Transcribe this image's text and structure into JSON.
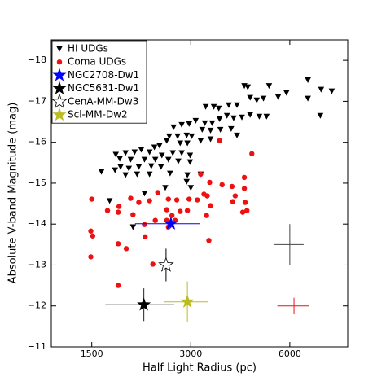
{
  "chart_data": {
    "type": "scatter",
    "x_label": "Half Light Radius (pc)",
    "y_label": "Absolute V-band Magnitude (mag)",
    "xscale": "log",
    "xlim": [
      1130,
      9000
    ],
    "ylim": [
      -11,
      -18.5
    ],
    "xticks": [
      1500,
      3000,
      6000
    ],
    "yticks": [
      {
        "value": -18,
        "label": "−18"
      },
      {
        "value": -17,
        "label": "−17"
      },
      {
        "value": -16,
        "label": "−16"
      },
      {
        "value": -15,
        "label": "−15"
      },
      {
        "value": -14,
        "label": "−14"
      },
      {
        "value": -13,
        "label": "−13"
      },
      {
        "value": -12,
        "label": "−12"
      },
      {
        "value": -11,
        "label": "−11"
      }
    ],
    "legend": "upper left",
    "series": [
      {
        "name": "HI UDGs",
        "color": "#000000",
        "marker": "triangle-down",
        "x": [
          6810,
          8050,
          7470,
          5190,
          4365,
          4470,
          4990,
          5860,
          5530,
          4761,
          4545,
          4145,
          3915,
          3650,
          3525,
          3330,
          3865,
          4545,
          4845,
          5100,
          4290,
          4050,
          3670,
          3485,
          3310,
          3105,
          2965,
          2815,
          2660,
          2580,
          2735,
          2915,
          3020,
          3250,
          3445,
          3690,
          3980,
          4145,
          3445,
          3215,
          2930,
          2785,
          2535,
          2410,
          2325,
          2248,
          2121,
          2025,
          1900,
          1775,
          1825,
          1970,
          2170,
          2340,
          2565,
          2450,
          2645,
          2815,
          2985,
          2985,
          2750,
          2435,
          2275,
          2085,
          1945,
          1835,
          1765,
          1605,
          1900,
          2060,
          2248,
          2595,
          2930,
          3215,
          3000,
          2915,
          2510,
          2170,
          1700,
          2002,
          7430,
          6810
        ],
        "values": [
          -17.52,
          -17.25,
          -17.29,
          -17.38,
          -17.38,
          -17.35,
          -17.07,
          -17.21,
          -17.11,
          -17.03,
          -17.09,
          -16.91,
          -16.91,
          -16.83,
          -16.87,
          -16.87,
          -16.65,
          -16.67,
          -16.63,
          -16.63,
          -16.61,
          -16.59,
          -16.57,
          -16.47,
          -16.47,
          -16.53,
          -16.45,
          -16.43,
          -16.37,
          -16.15,
          -16.15,
          -16.17,
          -16.15,
          -16.31,
          -16.29,
          -16.31,
          -16.33,
          -16.17,
          -16.08,
          -16.04,
          -15.98,
          -15.98,
          -16.04,
          -15.92,
          -15.88,
          -15.76,
          -15.82,
          -15.76,
          -15.74,
          -15.7,
          -15.6,
          -15.58,
          -15.58,
          -15.58,
          -15.58,
          -15.68,
          -15.74,
          -15.74,
          -15.68,
          -15.52,
          -15.54,
          -15.4,
          -15.42,
          -15.4,
          -15.36,
          -15.4,
          -15.32,
          -15.28,
          -15.2,
          -15.22,
          -15.22,
          -15.24,
          -15.2,
          -15.22,
          -14.89,
          -15.04,
          -14.89,
          -14.75,
          -14.57,
          -13.93,
          -16.65,
          -17.07
        ]
      },
      {
        "name": "Coma UDGs",
        "color": "#ee1111",
        "marker": "circle",
        "x": [
          3670,
          4600,
          3215,
          3425,
          4365,
          3735,
          3290,
          4004,
          4095,
          4365,
          4025,
          4390,
          4315,
          4445,
          3367,
          3445,
          3140,
          2965,
          2720,
          2565,
          2381,
          2248,
          2085,
          1970,
          1815,
          1500,
          1675,
          1805,
          2002,
          2535,
          2630,
          2785,
          2930,
          3350,
          2340,
          2170,
          2535,
          2690,
          2180,
          1490,
          1510,
          1490,
          1805,
          1910,
          2300,
          1805,
          3405,
          2565
        ],
        "values": [
          -16.04,
          -15.72,
          -15.22,
          -15.02,
          -15.14,
          -14.96,
          -14.73,
          -14.92,
          -14.69,
          -14.87,
          -14.55,
          -14.53,
          -14.29,
          -14.33,
          -14.69,
          -14.45,
          -14.59,
          -14.61,
          -14.59,
          -14.61,
          -14.77,
          -14.57,
          -14.53,
          -14.63,
          -14.43,
          -14.61,
          -14.33,
          -14.29,
          -14.23,
          -14.35,
          -14.21,
          -14.31,
          -14.33,
          -14.21,
          -14.09,
          -13.99,
          -14.09,
          -14.09,
          -13.69,
          -13.83,
          -13.71,
          -13.2,
          -13.52,
          -13.4,
          -13.02,
          -12.5,
          -13.6,
          -13.93
        ]
      },
      {
        "name": "NGC2708-Dw1",
        "color": "#0000ff",
        "marker": "star",
        "x": [
          2610
        ],
        "values": [
          -14.01
        ],
        "xerr": [
          580
        ],
        "yerr": [
          0.1
        ]
      },
      {
        "name": "NGC5631-Dw1",
        "color": "#000000",
        "marker": "star",
        "x": [
          2160
        ],
        "values": [
          -12.03
        ],
        "xerr": [
          510
        ],
        "yerr": [
          0.4
        ]
      },
      {
        "name": "CenA-MM-Dw3",
        "color": "#ffffff",
        "edgecolor": "#000000",
        "marker": "star",
        "x": [
          2523
        ],
        "values": [
          -13.0
        ],
        "xerr": [
          180
        ],
        "yerr": [
          0.4
        ]
      },
      {
        "name": "Scl-MM-Dw2",
        "color": "#bbbb22",
        "marker": "star",
        "x": [
          2930
        ],
        "values": [
          -12.1
        ],
        "xerr": [
          450
        ],
        "yerr": [
          0.5
        ]
      }
    ],
    "error_bars": [
      {
        "color": "#000000",
        "x": 6000,
        "value": -13.5,
        "xerr": 610,
        "yerr": 0.5
      },
      {
        "color": "#ee1111",
        "x": 6180,
        "value": -12.0,
        "xerr": 680,
        "yerr": 0.2
      }
    ]
  }
}
